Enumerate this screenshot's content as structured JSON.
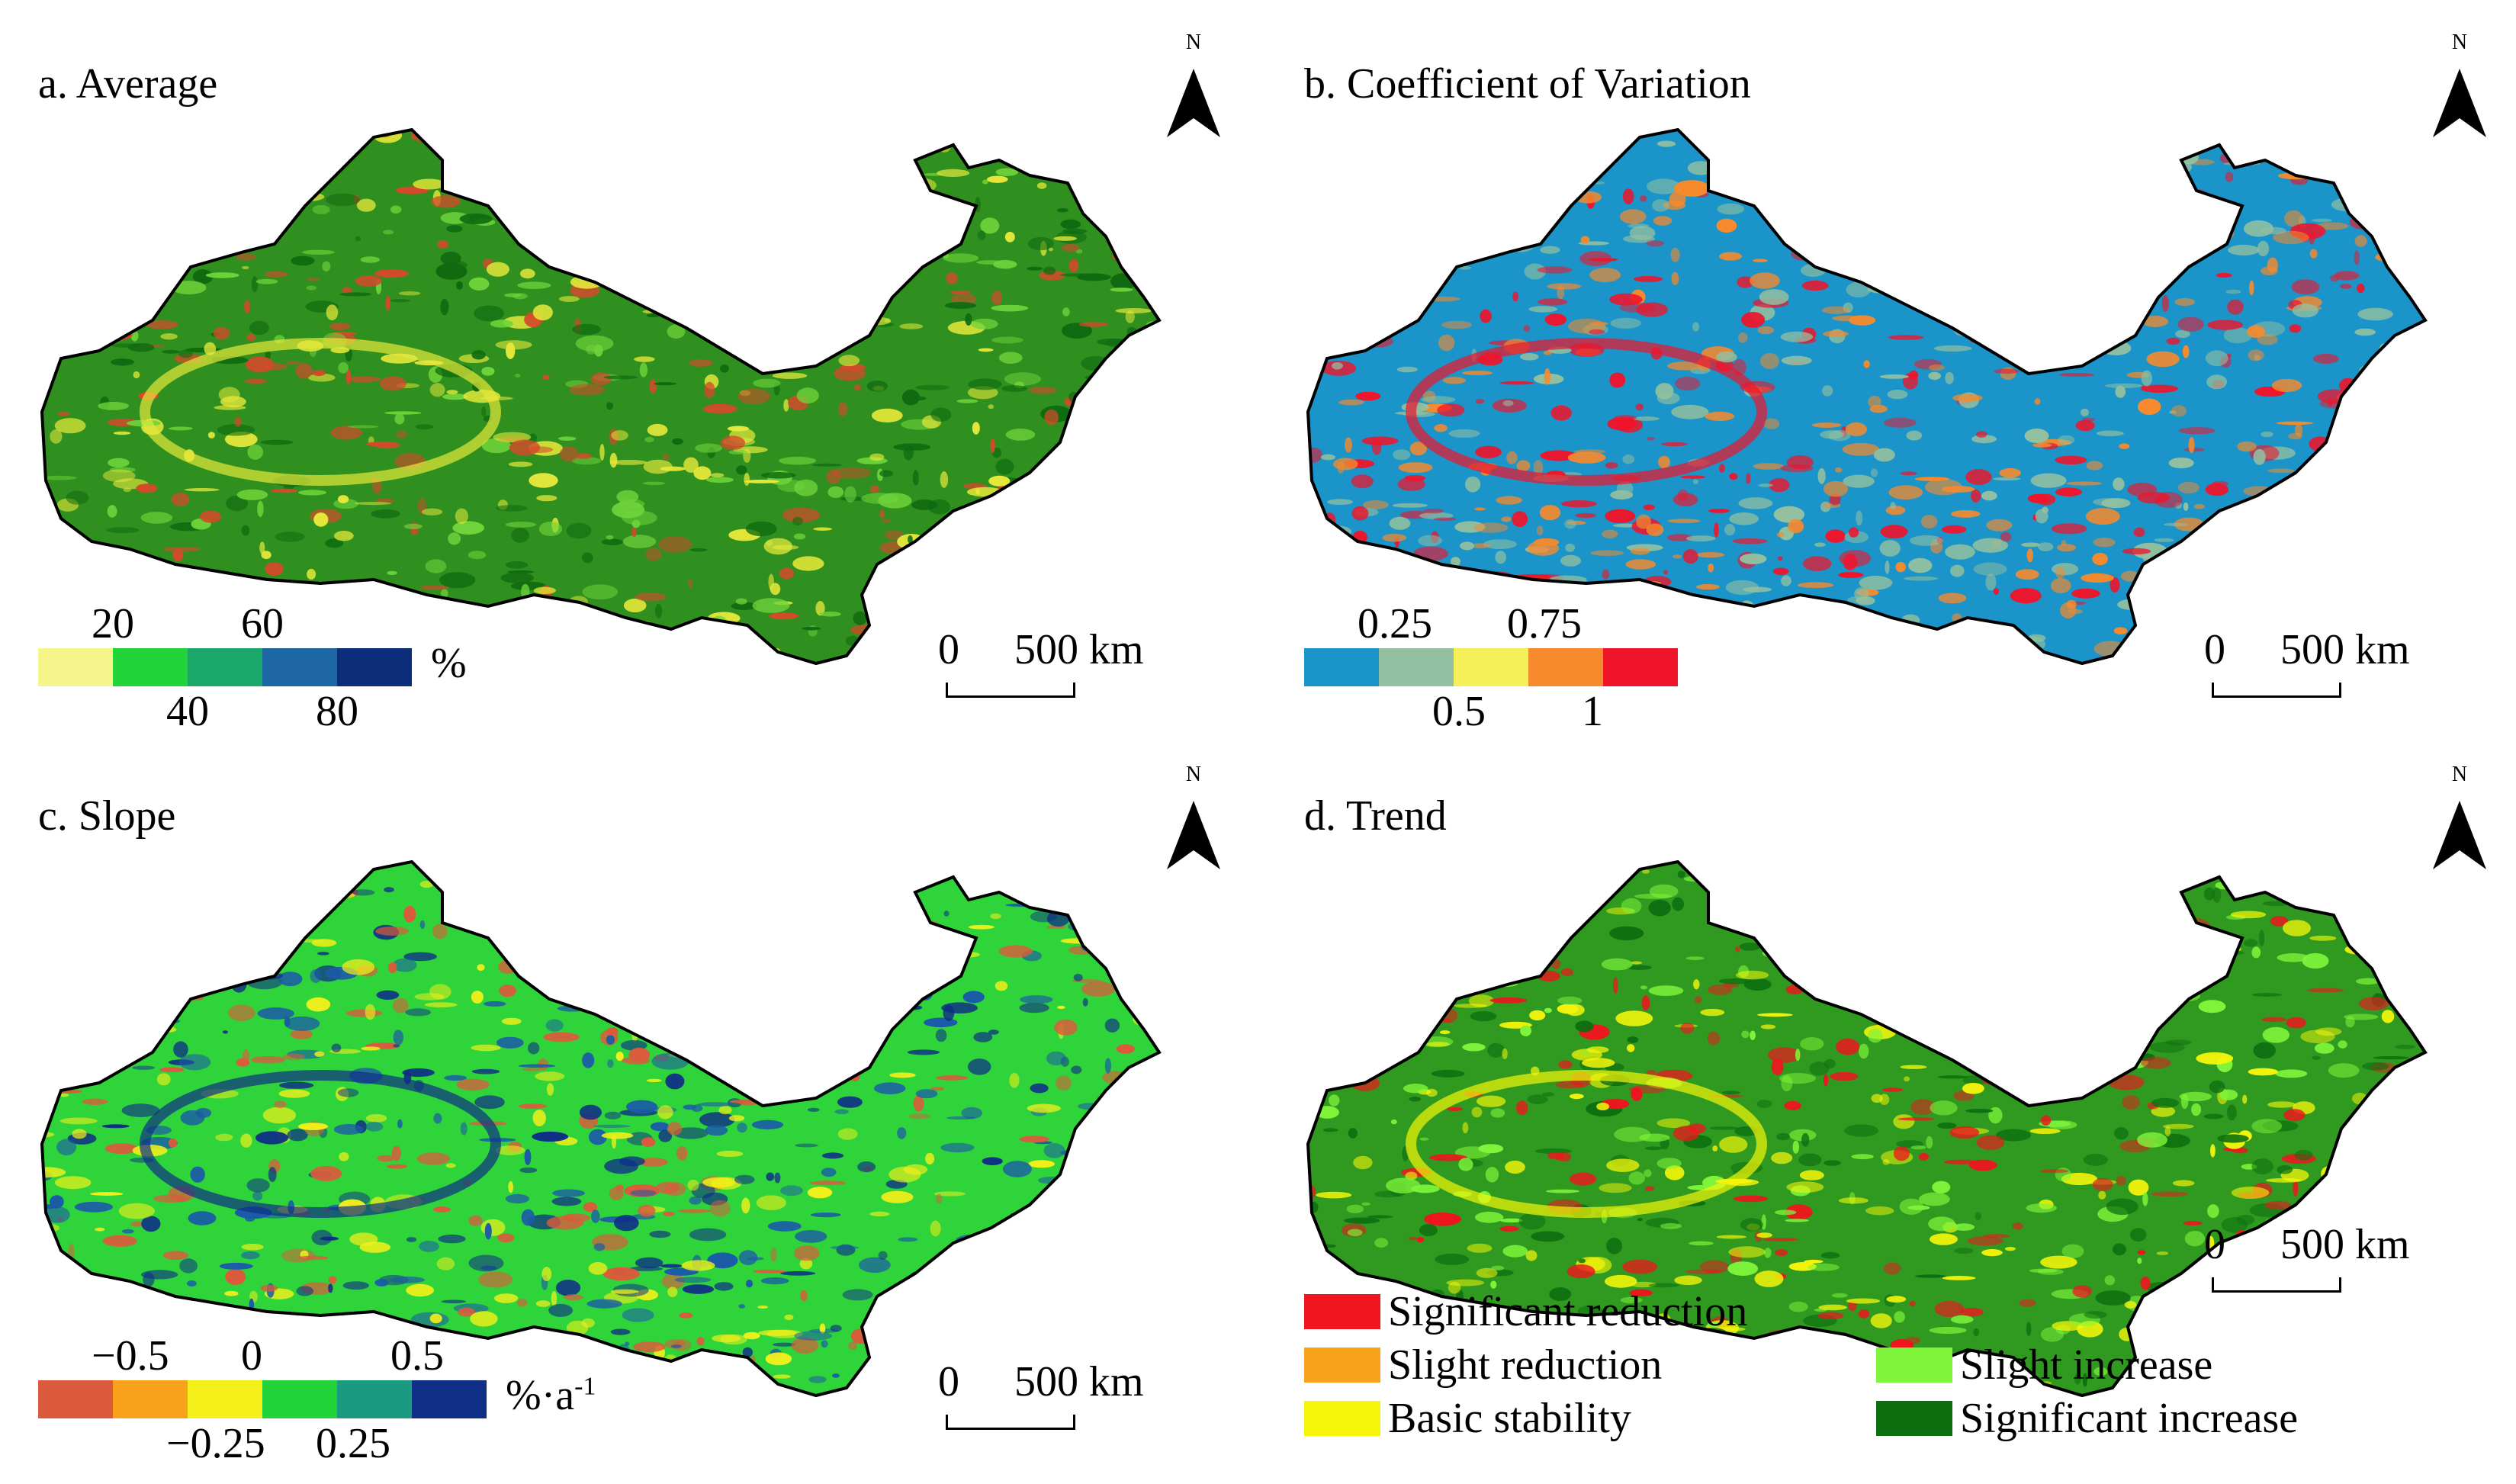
{
  "panels": [
    {
      "id": "a",
      "title": "a. Average",
      "unit": "%",
      "legend_type": "colorbar",
      "ticks_top": [
        "20",
        "60"
      ],
      "ticks_bottom": [
        "40",
        "80"
      ],
      "colors": [
        "#f5f58c",
        "#22d43a",
        "#1ba86a",
        "#1b66a3",
        "#0b2d7a"
      ],
      "map_base": "#2f8f1f",
      "map_accents": [
        "#6fd43a",
        "#e5e83a",
        "#d34a2a",
        "#0f6a10"
      ]
    },
    {
      "id": "b",
      "title": "b. Coefficient of Variation",
      "unit": "",
      "legend_type": "colorbar",
      "ticks_top": [
        "0.25",
        "0.75"
      ],
      "ticks_bottom": [
        "0.5",
        "1"
      ],
      "colors": [
        "#1a94c9",
        "#93c0a0",
        "#f5f05a",
        "#f78a2c",
        "#f0142a"
      ],
      "map_base": "#1a94c9",
      "map_accents": [
        "#93c0a0",
        "#f0142a",
        "#f78a2c"
      ]
    },
    {
      "id": "c",
      "title": "c. Slope",
      "unit": "%·a",
      "unit_sup": "-1",
      "legend_type": "colorbar",
      "ticks_top": [
        "−0.5",
        "0",
        "0.5"
      ],
      "ticks_bottom": [
        "−0.25",
        "0.25"
      ],
      "colors": [
        "#dc5a3c",
        "#f7a21a",
        "#f5f01a",
        "#22d43a",
        "#1b9a82",
        "#0f2f86"
      ],
      "map_base": "#2fd43a",
      "map_accents": [
        "#1b5aa8",
        "#0f2f86",
        "#f5f01a",
        "#dc5a3c"
      ]
    },
    {
      "id": "d",
      "title": "d. Trend",
      "legend_type": "categorical",
      "categories": [
        {
          "label": "Significant reduction",
          "color": "#f0141e"
        },
        {
          "label": "Slight reduction",
          "color": "#f7a21a"
        },
        {
          "label": "Basic stability",
          "color": "#f5f50a"
        },
        {
          "label": "Slight increase",
          "color": "#7ef53a"
        },
        {
          "label": "Significant increase",
          "color": "#0d6e10"
        }
      ],
      "map_base": "#2f9a1f",
      "map_accents": [
        "#7ef53a",
        "#f5f50a",
        "#f0141e",
        "#0d6e10"
      ]
    }
  ],
  "north_label": "N",
  "scale": {
    "zero": "0",
    "length": "500 km"
  }
}
